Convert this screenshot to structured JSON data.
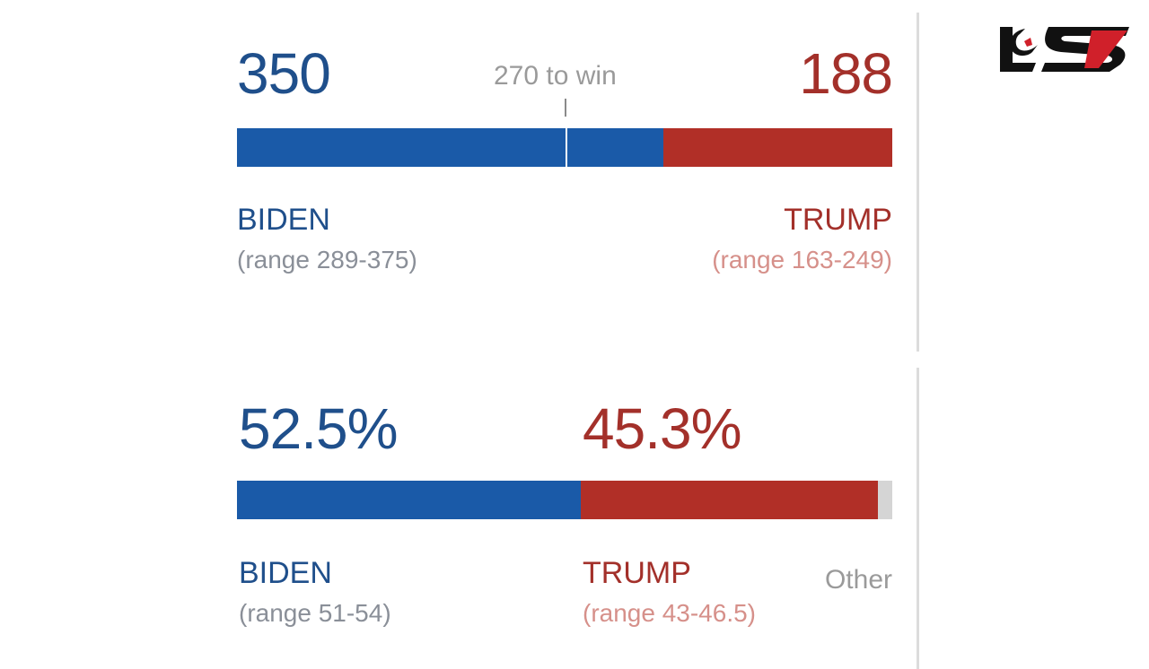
{
  "colors": {
    "biden": "#1a5aa8",
    "trump": "#b12f27",
    "other": "#d5d5d5",
    "biden_text": "#1f4f8b",
    "trump_text": "#a3302a",
    "range_text_biden": "#8a8f98",
    "range_text_trump": "#d6908a",
    "gray_text": "#9a9a9a"
  },
  "logo": {
    "icon": "brand-logo-icon"
  },
  "chart_data": [
    {
      "type": "bar",
      "title": "",
      "total": 538,
      "threshold": {
        "value": 270,
        "label": "270 to win"
      },
      "series": [
        {
          "name": "BIDEN",
          "value": 350,
          "value_label": "350",
          "range_label": "(range 289-375)"
        },
        {
          "name": "TRUMP",
          "value": 188,
          "value_label": "188",
          "range_label": "(range 163-249)"
        }
      ]
    },
    {
      "type": "bar",
      "title": "",
      "total": 100,
      "series": [
        {
          "name": "BIDEN",
          "value": 52.5,
          "value_label": "52.5%",
          "range_label": "(range 51-54)"
        },
        {
          "name": "TRUMP",
          "value": 45.3,
          "value_label": "45.3%",
          "range_label": "(range 43-46.5)"
        },
        {
          "name": "Other",
          "value": 2.2,
          "value_label": "Other"
        }
      ]
    }
  ]
}
